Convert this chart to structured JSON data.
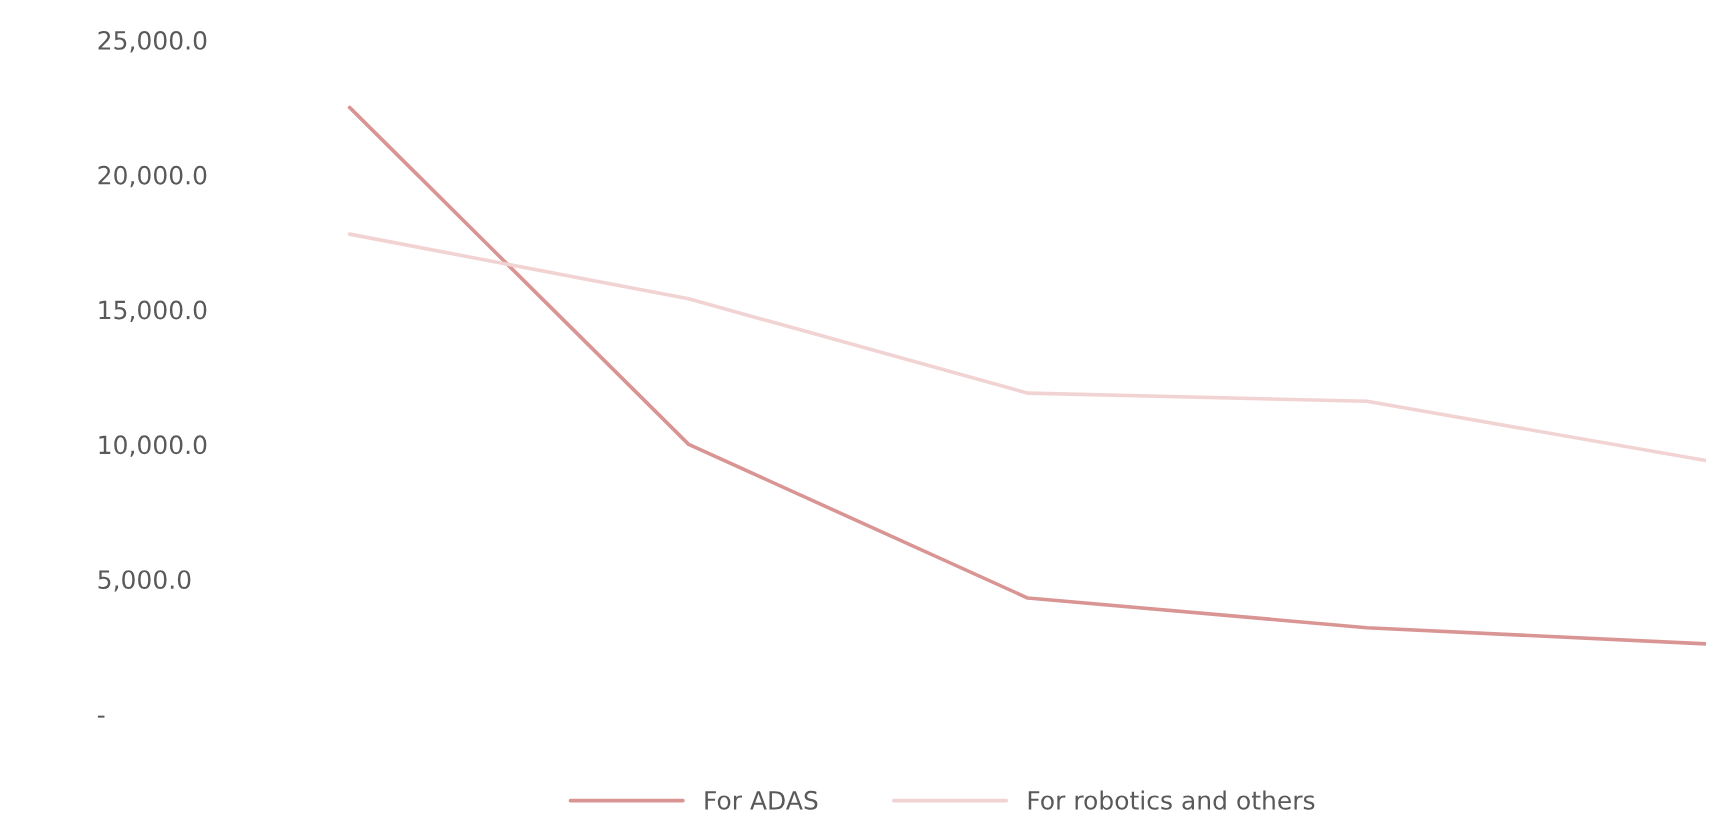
{
  "chart_data": {
    "type": "line",
    "categories": [
      null,
      null,
      null,
      null,
      null
    ],
    "series": [
      {
        "name": "For ADAS",
        "color": "#d99594",
        "values": [
          22500,
          10000,
          4300,
          3200,
          2600
        ]
      },
      {
        "name": "For robotics and others",
        "color": "#f2d3d3",
        "values": [
          17800,
          15400,
          11900,
          11600,
          9400
        ]
      }
    ],
    "ylim": [
      0,
      25000
    ],
    "yticks": [
      {
        "value": 0,
        "label": "-"
      },
      {
        "value": 5000,
        "label": "5,000.0"
      },
      {
        "value": 10000,
        "label": "10,000.0"
      },
      {
        "value": 15000,
        "label": "15,000.0"
      },
      {
        "value": 20000,
        "label": "20,000.0"
      },
      {
        "value": 25000,
        "label": "25,000.0"
      }
    ],
    "grid": false,
    "legend": "bottom",
    "marker": "none",
    "line_style": "solid"
  }
}
